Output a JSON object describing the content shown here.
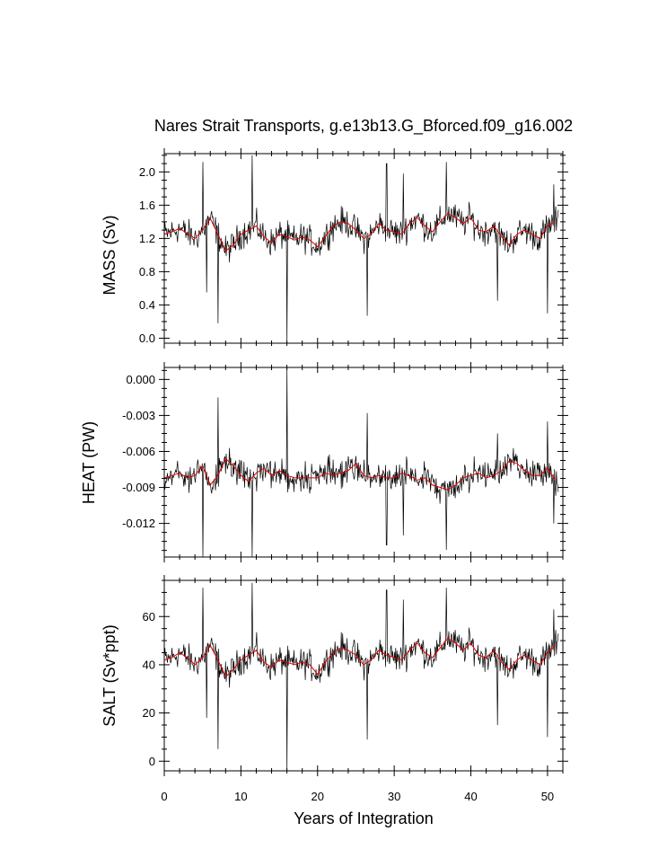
{
  "chart_data": {
    "type": "line",
    "title": "Nares Strait Transports, g.e13b13.G_Bforced.f09_g16.002",
    "xlabel": "Years of Integration",
    "xlim": [
      0,
      52
    ],
    "xticks": [
      0,
      10,
      20,
      30,
      40,
      50
    ],
    "x_tick_labels": [
      "0",
      "10",
      "20",
      "30",
      "40",
      "50"
    ],
    "series_colors": {
      "monthly": "#000000",
      "running_mean": "#e00000"
    },
    "panels": [
      {
        "name": "mass",
        "ylabel": "MASS (Sv)",
        "ylim": [
          -0.06,
          2.22
        ],
        "yticks": [
          0.0,
          0.4,
          0.8,
          1.2,
          1.6,
          2.0
        ],
        "y_tick_labels": [
          "0.0",
          "0.4",
          "0.8",
          "1.2",
          "1.6",
          "2.0"
        ],
        "smooth": [
          [
            0,
            1.25
          ],
          [
            1,
            1.28
          ],
          [
            2,
            1.32
          ],
          [
            3,
            1.26
          ],
          [
            4,
            1.2
          ],
          [
            5,
            1.3
          ],
          [
            6,
            1.44
          ],
          [
            7,
            1.25
          ],
          [
            8,
            1.05
          ],
          [
            9,
            1.12
          ],
          [
            10,
            1.25
          ],
          [
            11,
            1.3
          ],
          [
            12,
            1.35
          ],
          [
            13,
            1.22
          ],
          [
            14,
            1.15
          ],
          [
            15,
            1.25
          ],
          [
            16,
            1.22
          ],
          [
            17,
            1.18
          ],
          [
            18,
            1.22
          ],
          [
            19,
            1.18
          ],
          [
            20,
            1.1
          ],
          [
            21,
            1.22
          ],
          [
            22,
            1.35
          ],
          [
            23,
            1.4
          ],
          [
            24,
            1.38
          ],
          [
            25,
            1.3
          ],
          [
            26,
            1.2
          ],
          [
            27,
            1.25
          ],
          [
            28,
            1.38
          ],
          [
            29,
            1.3
          ],
          [
            30,
            1.28
          ],
          [
            31,
            1.25
          ],
          [
            32,
            1.38
          ],
          [
            33,
            1.45
          ],
          [
            34,
            1.35
          ],
          [
            35,
            1.28
          ],
          [
            36,
            1.4
          ],
          [
            37,
            1.5
          ],
          [
            38,
            1.45
          ],
          [
            39,
            1.38
          ],
          [
            40,
            1.45
          ],
          [
            41,
            1.3
          ],
          [
            42,
            1.28
          ],
          [
            43,
            1.35
          ],
          [
            44,
            1.22
          ],
          [
            45,
            1.12
          ],
          [
            46,
            1.25
          ],
          [
            47,
            1.3
          ],
          [
            48,
            1.25
          ],
          [
            49,
            1.2
          ],
          [
            50,
            1.35
          ],
          [
            51,
            1.4
          ]
        ],
        "spikes": [
          [
            5.0,
            2.12
          ],
          [
            5.5,
            0.55
          ],
          [
            7.0,
            0.18
          ],
          [
            11.5,
            2.2
          ],
          [
            16.0,
            -0.06
          ],
          [
            26.5,
            0.27
          ],
          [
            29.0,
            2.1
          ],
          [
            31.2,
            1.98
          ],
          [
            36.8,
            2.12
          ],
          [
            43.5,
            0.45
          ],
          [
            50.0,
            0.3
          ],
          [
            50.8,
            1.85
          ]
        ]
      },
      {
        "name": "heat",
        "ylabel": "HEAT (PW)",
        "ylim": [
          -0.0148,
          0.001
        ],
        "yticks": [
          0.0,
          -0.003,
          -0.006,
          -0.009,
          -0.012
        ],
        "y_tick_labels": [
          "0.000",
          "-0.003",
          "-0.006",
          "-0.009",
          "-0.012"
        ],
        "smooth": [
          [
            0,
            -0.0082
          ],
          [
            1,
            -0.008
          ],
          [
            2,
            -0.0078
          ],
          [
            3,
            -0.0082
          ],
          [
            4,
            -0.008
          ],
          [
            5,
            -0.0072
          ],
          [
            6,
            -0.0088
          ],
          [
            7,
            -0.008
          ],
          [
            8,
            -0.0066
          ],
          [
            9,
            -0.0072
          ],
          [
            10,
            -0.008
          ],
          [
            11,
            -0.0085
          ],
          [
            12,
            -0.0078
          ],
          [
            13,
            -0.0074
          ],
          [
            14,
            -0.008
          ],
          [
            15,
            -0.0076
          ],
          [
            16,
            -0.008
          ],
          [
            17,
            -0.0082
          ],
          [
            18,
            -0.0082
          ],
          [
            19,
            -0.0082
          ],
          [
            20,
            -0.0082
          ],
          [
            21,
            -0.0078
          ],
          [
            22,
            -0.008
          ],
          [
            23,
            -0.0078
          ],
          [
            24,
            -0.0076
          ],
          [
            25,
            -0.007
          ],
          [
            26,
            -0.008
          ],
          [
            27,
            -0.0082
          ],
          [
            28,
            -0.008
          ],
          [
            29,
            -0.0082
          ],
          [
            30,
            -0.0082
          ],
          [
            31,
            -0.0078
          ],
          [
            32,
            -0.008
          ],
          [
            33,
            -0.0084
          ],
          [
            34,
            -0.0082
          ],
          [
            35,
            -0.0088
          ],
          [
            36,
            -0.009
          ],
          [
            37,
            -0.0092
          ],
          [
            38,
            -0.0088
          ],
          [
            39,
            -0.0082
          ],
          [
            40,
            -0.008
          ],
          [
            41,
            -0.0078
          ],
          [
            42,
            -0.0082
          ],
          [
            43,
            -0.008
          ],
          [
            44,
            -0.0076
          ],
          [
            45,
            -0.0068
          ],
          [
            46,
            -0.007
          ],
          [
            47,
            -0.0076
          ],
          [
            48,
            -0.008
          ],
          [
            49,
            -0.008
          ],
          [
            50,
            -0.0074
          ],
          [
            51,
            -0.0084
          ]
        ],
        "spikes": [
          [
            5.0,
            -0.0148
          ],
          [
            7.0,
            -0.0015
          ],
          [
            11.5,
            -0.0148
          ],
          [
            16.0,
            0.001
          ],
          [
            26.5,
            -0.0028
          ],
          [
            29.0,
            -0.0138
          ],
          [
            31.2,
            -0.013
          ],
          [
            36.8,
            -0.0142
          ],
          [
            43.5,
            -0.0045
          ],
          [
            50.0,
            -0.0035
          ],
          [
            50.8,
            -0.012
          ]
        ]
      },
      {
        "name": "salt",
        "ylabel": "SALT (Sv*ppt)",
        "ylim": [
          -4,
          75
        ],
        "yticks": [
          0,
          20,
          40,
          60
        ],
        "y_tick_labels": [
          "0",
          "20",
          "40",
          "60"
        ],
        "smooth": [
          [
            0,
            42
          ],
          [
            1,
            43
          ],
          [
            2,
            45
          ],
          [
            3,
            43
          ],
          [
            4,
            40
          ],
          [
            5,
            43
          ],
          [
            6,
            48
          ],
          [
            7,
            42
          ],
          [
            8,
            35
          ],
          [
            9,
            38
          ],
          [
            10,
            42
          ],
          [
            11,
            44
          ],
          [
            12,
            46
          ],
          [
            13,
            41
          ],
          [
            14,
            39
          ],
          [
            15,
            42
          ],
          [
            16,
            41
          ],
          [
            17,
            40
          ],
          [
            18,
            41
          ],
          [
            19,
            40
          ],
          [
            20,
            36
          ],
          [
            21,
            41
          ],
          [
            22,
            45
          ],
          [
            23,
            47
          ],
          [
            24,
            46
          ],
          [
            25,
            44
          ],
          [
            26,
            40
          ],
          [
            27,
            42
          ],
          [
            28,
            46
          ],
          [
            29,
            44
          ],
          [
            30,
            43
          ],
          [
            31,
            42
          ],
          [
            32,
            46
          ],
          [
            33,
            49
          ],
          [
            34,
            45
          ],
          [
            35,
            43
          ],
          [
            36,
            47
          ],
          [
            37,
            51
          ],
          [
            38,
            49
          ],
          [
            39,
            46
          ],
          [
            40,
            49
          ],
          [
            41,
            44
          ],
          [
            42,
            43
          ],
          [
            43,
            46
          ],
          [
            44,
            41
          ],
          [
            45,
            38
          ],
          [
            46,
            42
          ],
          [
            47,
            44
          ],
          [
            48,
            42
          ],
          [
            49,
            40
          ],
          [
            50,
            45
          ],
          [
            51,
            48
          ]
        ],
        "spikes": [
          [
            5.0,
            72
          ],
          [
            5.5,
            18
          ],
          [
            7.0,
            5
          ],
          [
            11.5,
            74
          ],
          [
            16.0,
            -4
          ],
          [
            26.5,
            9
          ],
          [
            29.0,
            71
          ],
          [
            31.2,
            67
          ],
          [
            36.8,
            72
          ],
          [
            43.5,
            15
          ],
          [
            50.0,
            10
          ],
          [
            50.8,
            63
          ]
        ]
      }
    ]
  }
}
